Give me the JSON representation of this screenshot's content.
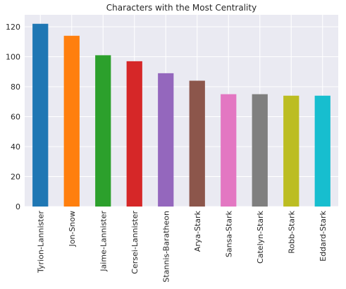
{
  "chart_data": {
    "type": "bar",
    "title": "Characters with the Most Centrality",
    "xlabel": "",
    "ylabel": "",
    "categories": [
      "Tyrion-Lannister",
      "Jon-Snow",
      "Jaime-Lannister",
      "Cersei-Lannister",
      "Stannis-Baratheon",
      "Arya-Stark",
      "Sansa-Stark",
      "Catelyn-Stark",
      "Robb-Stark",
      "Eddard-Stark"
    ],
    "values": [
      122,
      114,
      101,
      97,
      89,
      84,
      75,
      75,
      74,
      74
    ],
    "colors": [
      "#1f77b4",
      "#ff7f0e",
      "#2ca02c",
      "#d62728",
      "#9467bd",
      "#8c564b",
      "#e377c2",
      "#7f7f7f",
      "#bcbd22",
      "#17becf"
    ],
    "ylim": [
      0,
      128
    ],
    "yticks": [
      "0",
      "20",
      "40",
      "60",
      "80",
      "100",
      "120"
    ],
    "grid": true,
    "background_color": "#eaeaf2",
    "grid_color": "#ffffff"
  }
}
